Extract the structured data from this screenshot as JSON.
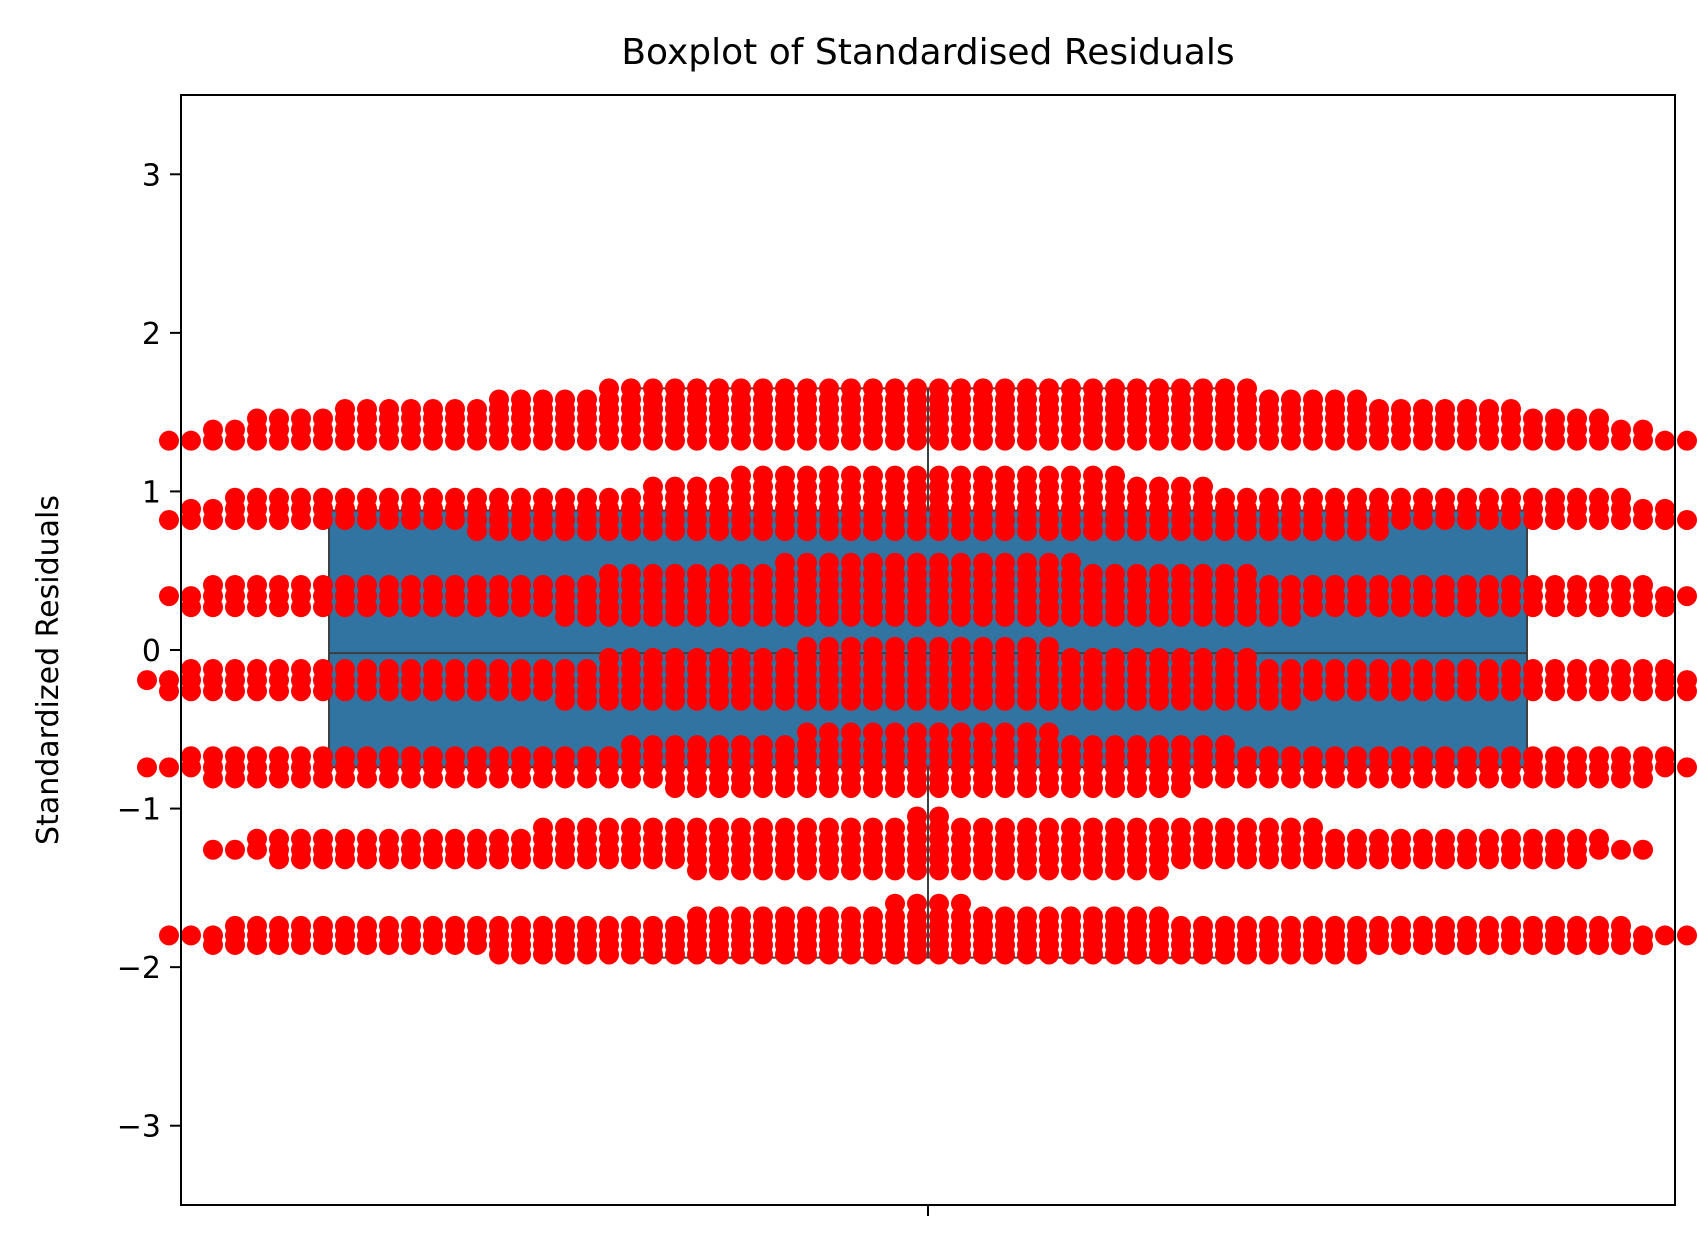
{
  "chart_data": {
    "type": "boxplot",
    "title": "Boxplot of  Standardised Residuals",
    "xlabel": "",
    "ylabel": "Standardized Residuals",
    "ylim": [
      -3.5,
      3.5
    ],
    "yticks": [
      3,
      2,
      1,
      0,
      -1,
      -2,
      -3
    ],
    "ytick_labels": [
      "3",
      "2",
      "1",
      "0",
      "−1",
      "−2",
      "−3"
    ],
    "grid": false,
    "box": {
      "q1": -0.74,
      "median": -0.02,
      "q3": 0.88,
      "whisker_low": -1.94,
      "whisker_high": 1.65,
      "color": "#3274a1"
    },
    "swarm": {
      "color": "#ff0000",
      "levels": [
        {
          "y": 1.65,
          "count": 30
        },
        {
          "y": 1.58,
          "count": 40
        },
        {
          "y": 1.52,
          "count": 54
        },
        {
          "y": 1.46,
          "count": 62
        },
        {
          "y": 1.39,
          "count": 66
        },
        {
          "y": 1.32,
          "count": 70
        },
        {
          "y": 1.1,
          "count": 18
        },
        {
          "y": 1.03,
          "count": 26
        },
        {
          "y": 0.96,
          "count": 64
        },
        {
          "y": 0.89,
          "count": 68
        },
        {
          "y": 0.82,
          "count": 70
        },
        {
          "y": 0.75,
          "count": 42
        },
        {
          "y": 0.55,
          "count": 14
        },
        {
          "y": 0.48,
          "count": 30
        },
        {
          "y": 0.41,
          "count": 66
        },
        {
          "y": 0.34,
          "count": 70
        },
        {
          "y": 0.27,
          "count": 68
        },
        {
          "y": 0.21,
          "count": 34
        },
        {
          "y": 0.02,
          "count": 12
        },
        {
          "y": -0.05,
          "count": 30
        },
        {
          "y": -0.12,
          "count": 68
        },
        {
          "y": -0.19,
          "count": 72
        },
        {
          "y": -0.26,
          "count": 70
        },
        {
          "y": -0.32,
          "count": 34
        },
        {
          "y": -0.52,
          "count": 12
        },
        {
          "y": -0.6,
          "count": 28
        },
        {
          "y": -0.67,
          "count": 68
        },
        {
          "y": -0.74,
          "count": 72
        },
        {
          "y": -0.81,
          "count": 66
        },
        {
          "y": -0.87,
          "count": 24
        },
        {
          "y": -1.05,
          "count": 2
        },
        {
          "y": -1.12,
          "count": 36
        },
        {
          "y": -1.19,
          "count": 62
        },
        {
          "y": -1.26,
          "count": 66
        },
        {
          "y": -1.32,
          "count": 60
        },
        {
          "y": -1.39,
          "count": 22
        },
        {
          "y": -1.6,
          "count": 4
        },
        {
          "y": -1.68,
          "count": 22
        },
        {
          "y": -1.74,
          "count": 64
        },
        {
          "y": -1.8,
          "count": 70
        },
        {
          "y": -1.86,
          "count": 66
        },
        {
          "y": -1.92,
          "count": 40
        }
      ]
    }
  }
}
